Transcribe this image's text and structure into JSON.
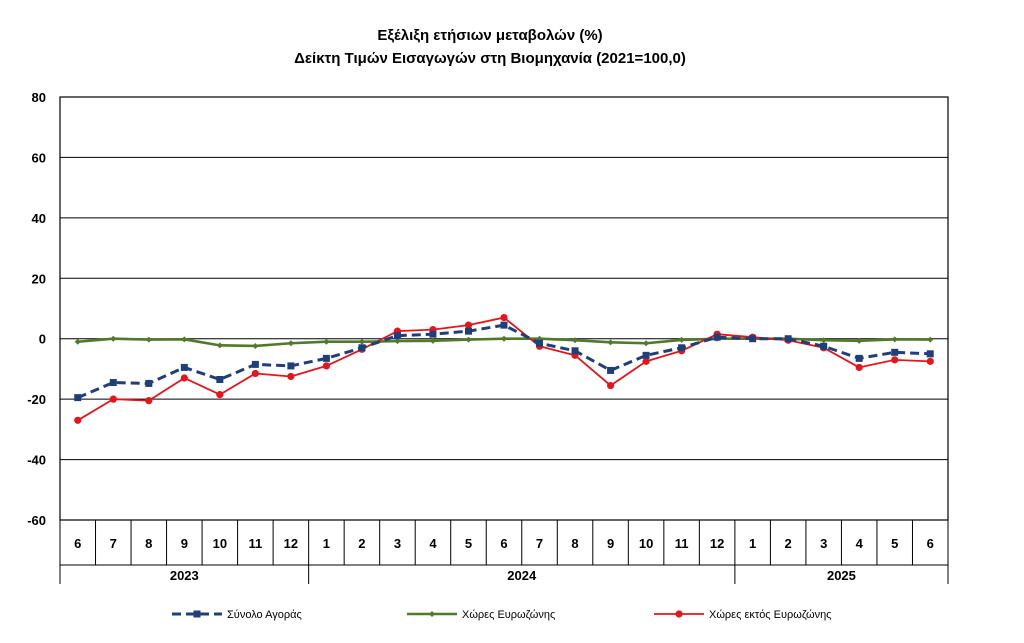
{
  "chart_data": {
    "type": "line",
    "title": "Εξέλιξη ετήσιων μεταβολών (%)",
    "subtitle": "Δείκτη Τιμών Εισαγωγών στη Βιομηχανία (2021=100,0)",
    "ylim": [
      -60,
      80
    ],
    "yticks": [
      80,
      60,
      40,
      20,
      0,
      -20,
      -40,
      -60
    ],
    "grid": true,
    "legend_position": "bottom",
    "categories": [
      "6",
      "7",
      "8",
      "9",
      "10",
      "11",
      "12",
      "1",
      "2",
      "3",
      "4",
      "5",
      "6",
      "7",
      "8",
      "9",
      "10",
      "11",
      "12",
      "1",
      "2",
      "3",
      "4",
      "5",
      "6"
    ],
    "years": [
      {
        "label": "2023",
        "start": 0,
        "count": 7
      },
      {
        "label": "2024",
        "start": 7,
        "count": 12
      },
      {
        "label": "2025",
        "start": 19,
        "count": 6
      }
    ],
    "series": [
      {
        "name": "Σύνολο Αγοράς",
        "color": "#1f3f7a",
        "style": "dashed-square",
        "values": [
          -19.5,
          -14.5,
          -14.8,
          -9.5,
          -13.5,
          -8.5,
          -9,
          -6.5,
          -3,
          1,
          1.5,
          2.5,
          4.5,
          -1.5,
          -4,
          -10.5,
          -5.5,
          -3,
          0.5,
          0,
          0,
          -2.5,
          -6.5,
          -4.5,
          -5
        ]
      },
      {
        "name": "Χώρες Ευρωζώνης",
        "color": "#4f7a28",
        "style": "solid-diamond",
        "values": [
          -1,
          0,
          -0.3,
          -0.2,
          -2.2,
          -2.4,
          -1.5,
          -1,
          -1,
          -0.8,
          -0.7,
          -0.3,
          0,
          0,
          -0.5,
          -1.2,
          -1.5,
          -0.4,
          0,
          0,
          0,
          -0.5,
          -0.7,
          -0.2,
          -0.3
        ]
      },
      {
        "name": "Χώρες εκτός Ευρωζώνης",
        "color": "#e8141c",
        "style": "solid-circle",
        "values": [
          -27,
          -20,
          -20.5,
          -13,
          -18.5,
          -11.5,
          -12.5,
          -9,
          -3.5,
          2.5,
          3,
          4.5,
          7,
          -2.5,
          -5.5,
          -15.5,
          -7.5,
          -4,
          1.5,
          0.5,
          -0.5,
          -3,
          -9.5,
          -7,
          -7.5
        ]
      }
    ]
  }
}
